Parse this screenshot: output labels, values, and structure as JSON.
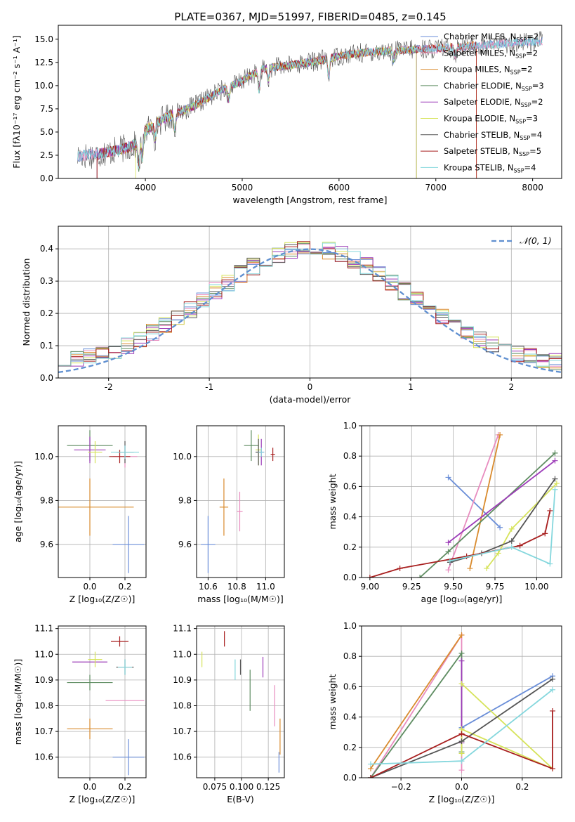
{
  "figure": {
    "title": "PLATE=0367, MJD=51997, FIBERID=0485, z=0.145"
  },
  "colors": {
    "Chabrier MILES": "#6a8ed8",
    "Salpeter MILES": "#e88cbf",
    "Kroupa MILES": "#d98b2e",
    "Chabrier ELODIE": "#5e8c61",
    "Salpeter ELODIE": "#9c3bb8",
    "Kroupa ELODIE": "#d6e35a",
    "Chabrier STELIB": "#555555",
    "Salpeter STELIB": "#a81f1f",
    "Kroupa STELIB": "#85d7dd",
    "gaussian": "#5f8fd0"
  },
  "chart_data": [
    {
      "id": "spectrum",
      "type": "line",
      "xlabel": "wavelength [Angstrom, rest frame]",
      "ylabel": "Flux [fλ10⁻¹⁷ erg cm⁻² s⁻¹ A⁻¹]",
      "xlim": [
        3100,
        8300
      ],
      "ylim": [
        0,
        16.5
      ],
      "xticks": [
        4000,
        5000,
        6000,
        7000,
        8000
      ],
      "yticks": [
        0.0,
        2.5,
        5.0,
        7.5,
        10.0,
        12.5,
        15.0
      ],
      "legend_position": "top-right",
      "legend": [
        {
          "name": "Chabrier MILES",
          "nssp": "2"
        },
        {
          "name": "Salpeter MILES",
          "nssp": "2"
        },
        {
          "name": "Kroupa MILES",
          "nssp": "2"
        },
        {
          "name": "Chabrier ELODIE",
          "nssp": "3"
        },
        {
          "name": "Salpeter ELODIE",
          "nssp": "2"
        },
        {
          "name": "Kroupa ELODIE",
          "nssp": "3"
        },
        {
          "name": "Chabrier STELIB",
          "nssp": "4"
        },
        {
          "name": "Salpeter STELIB",
          "nssp": "5"
        },
        {
          "name": "Kroupa STELIB",
          "nssp": "4"
        }
      ],
      "continuum": {
        "x": [
          3300,
          3500,
          3700,
          3900,
          4000,
          4200,
          4500,
          4800,
          5000,
          5200,
          5500,
          5800,
          6000,
          6300,
          6600,
          7000,
          7400,
          7800,
          8100
        ],
        "y": [
          2.4,
          2.6,
          3.0,
          3.6,
          5.2,
          6.5,
          7.8,
          9.6,
          10.5,
          11.8,
          12.2,
          12.7,
          13.2,
          13.6,
          13.8,
          14.0,
          14.3,
          14.6,
          14.8
        ]
      }
    },
    {
      "id": "residuals",
      "type": "step",
      "xlabel": "(data-model)/error",
      "ylabel": "Normed distribution",
      "xlim": [
        -2.5,
        2.5
      ],
      "ylim": [
        0,
        0.47
      ],
      "xticks": [
        -2,
        -1,
        0,
        1,
        2
      ],
      "yticks": [
        0.0,
        0.1,
        0.2,
        0.3,
        0.4
      ],
      "gaussian_label": "𝒩(0, 1)",
      "gaussian": {
        "mu": 0,
        "sigma": 1
      }
    },
    {
      "id": "age_vs_Z",
      "type": "errorbar",
      "xlabel": "Z [log₁₀(Z/Z☉)]",
      "ylabel": "age  [log₁₀(age/yr)]",
      "xlim": [
        -0.18,
        0.32
      ],
      "ylim": [
        9.45,
        10.14
      ],
      "xticks": [
        0.0,
        0.2
      ],
      "yticks": [
        9.6,
        9.8,
        10.0
      ],
      "points": [
        {
          "model": "Chabrier MILES",
          "x": 0.22,
          "y": 9.6,
          "xerr": 0.09,
          "yerr": 0.13
        },
        {
          "model": "Salpeter MILES",
          "x": 0.2,
          "y": 10.0,
          "xerr": 0.07,
          "yerr": 0.05
        },
        {
          "model": "Kroupa MILES",
          "x": 0.0,
          "y": 9.77,
          "xerr": 0.25,
          "yerr": 0.13
        },
        {
          "model": "Chabrier ELODIE",
          "x": 0.0,
          "y": 10.05,
          "xerr": 0.13,
          "yerr": 0.07
        },
        {
          "model": "Salpeter ELODIE",
          "x": 0.0,
          "y": 10.03,
          "xerr": 0.09,
          "yerr": 0.06
        },
        {
          "model": "Kroupa ELODIE",
          "x": 0.03,
          "y": 10.02,
          "xerr": 0.04,
          "yerr": 0.05
        },
        {
          "model": "Chabrier STELIB",
          "x": 0.2,
          "y": 10.02,
          "xerr": 0.05,
          "yerr": 0.05
        },
        {
          "model": "Salpeter STELIB",
          "x": 0.17,
          "y": 10.0,
          "xerr": 0.06,
          "yerr": 0.03
        },
        {
          "model": "Kroupa STELIB",
          "x": 0.2,
          "y": 10.02,
          "xerr": 0.08,
          "yerr": 0.03
        }
      ]
    },
    {
      "id": "age_vs_mass",
      "type": "errorbar",
      "xlabel": "mass [log₁₀(M/M☉)]",
      "ylabel": "",
      "xlim": [
        10.52,
        11.13
      ],
      "ylim": [
        9.45,
        10.14
      ],
      "xticks": [
        10.6,
        10.8,
        11.0
      ],
      "yticks": [
        9.6,
        9.8,
        10.0
      ],
      "points": [
        {
          "model": "Chabrier MILES",
          "x": 10.6,
          "y": 9.6,
          "xerr": 0.05,
          "yerr": 0.13
        },
        {
          "model": "Salpeter MILES",
          "x": 10.82,
          "y": 9.75,
          "xerr": 0.02,
          "yerr": 0.09
        },
        {
          "model": "Kroupa MILES",
          "x": 10.71,
          "y": 9.77,
          "xerr": 0.03,
          "yerr": 0.13
        },
        {
          "model": "Chabrier ELODIE",
          "x": 10.9,
          "y": 10.05,
          "xerr": 0.05,
          "yerr": 0.07
        },
        {
          "model": "Salpeter ELODIE",
          "x": 10.97,
          "y": 10.02,
          "xerr": 0.02,
          "yerr": 0.06
        },
        {
          "model": "Kroupa ELODIE",
          "x": 10.95,
          "y": 10.03,
          "xerr": 0.02,
          "yerr": 0.07
        },
        {
          "model": "Chabrier STELIB",
          "x": 10.95,
          "y": 10.02,
          "xerr": 0.02,
          "yerr": 0.06
        },
        {
          "model": "Salpeter STELIB",
          "x": 11.05,
          "y": 10.01,
          "xerr": 0.015,
          "yerr": 0.03
        },
        {
          "model": "Kroupa STELIB",
          "x": 10.97,
          "y": 10.02,
          "xerr": 0.02,
          "yerr": 0.02
        }
      ]
    },
    {
      "id": "massweight_vs_age",
      "type": "line",
      "xlabel": "age  [log₁₀(age/yr)]",
      "ylabel": "mass weight",
      "xlim": [
        8.95,
        10.15
      ],
      "ylim": [
        0,
        1.0
      ],
      "xticks": [
        9.0,
        9.25,
        9.5,
        9.75,
        10.0
      ],
      "xticklabels": [
        "9.00",
        "9.25",
        "9.50",
        "9.75",
        "10.00"
      ],
      "yticks": [
        0.0,
        0.2,
        0.4,
        0.6,
        0.8,
        1.0
      ],
      "series": [
        {
          "model": "Chabrier MILES",
          "x": [
            9.47,
            9.78
          ],
          "y": [
            0.66,
            0.33
          ]
        },
        {
          "model": "Salpeter MILES",
          "x": [
            9.47,
            9.77
          ],
          "y": [
            0.05,
            0.94
          ]
        },
        {
          "model": "Kroupa MILES",
          "x": [
            9.6,
            9.78
          ],
          "y": [
            0.06,
            0.94
          ]
        },
        {
          "model": "Chabrier ELODIE",
          "x": [
            9.3,
            9.47,
            10.11
          ],
          "y": [
            0.0,
            0.17,
            0.82
          ]
        },
        {
          "model": "Salpeter ELODIE",
          "x": [
            9.47,
            10.11
          ],
          "y": [
            0.23,
            0.77
          ]
        },
        {
          "model": "Kroupa ELODIE",
          "x": [
            9.7,
            9.77,
            9.85,
            10.12
          ],
          "y": [
            0.06,
            0.16,
            0.32,
            0.62
          ]
        },
        {
          "model": "Chabrier STELIB",
          "x": [
            9.48,
            9.67,
            9.85,
            10.11
          ],
          "y": [
            0.1,
            0.16,
            0.24,
            0.65
          ]
        },
        {
          "model": "Salpeter STELIB",
          "x": [
            9.0,
            9.18,
            9.58,
            9.9,
            10.05,
            10.08
          ],
          "y": [
            0.0,
            0.06,
            0.14,
            0.21,
            0.29,
            0.44
          ]
        },
        {
          "model": "Kroupa STELIB",
          "x": [
            9.48,
            9.85,
            10.08,
            10.11
          ],
          "y": [
            0.11,
            0.2,
            0.09,
            0.58
          ]
        }
      ]
    },
    {
      "id": "mass_vs_Z",
      "type": "errorbar",
      "xlabel": "Z [log₁₀(Z/Z☉)]",
      "ylabel": "mass [log₁₀(M/M☉)]",
      "xlim": [
        -0.18,
        0.32
      ],
      "ylim": [
        10.52,
        11.11
      ],
      "xticks": [
        0.0,
        0.2
      ],
      "yticks": [
        10.6,
        10.7,
        10.8,
        10.9,
        11.0,
        11.1
      ],
      "points": [
        {
          "model": "Chabrier MILES",
          "x": 0.22,
          "y": 10.6,
          "xerr": 0.09,
          "yerr": 0.07
        },
        {
          "model": "Salpeter MILES",
          "x": 0.2,
          "y": 10.82,
          "xerr": 0.11,
          "yerr": 0.0
        },
        {
          "model": "Kroupa MILES",
          "x": 0.0,
          "y": 10.71,
          "xerr": 0.13,
          "yerr": 0.04
        },
        {
          "model": "Chabrier ELODIE",
          "x": 0.0,
          "y": 10.89,
          "xerr": 0.13,
          "yerr": 0.03
        },
        {
          "model": "Salpeter ELODIE",
          "x": 0.0,
          "y": 10.97,
          "xerr": 0.1,
          "yerr": 0.0
        },
        {
          "model": "Kroupa ELODIE",
          "x": 0.03,
          "y": 10.98,
          "xerr": 0.04,
          "yerr": 0.03
        },
        {
          "model": "Chabrier STELIB",
          "x": 0.2,
          "y": 10.95,
          "xerr": 0.05,
          "yerr": 0.03
        },
        {
          "model": "Salpeter STELIB",
          "x": 0.17,
          "y": 11.05,
          "xerr": 0.05,
          "yerr": 0.02
        },
        {
          "model": "Kroupa STELIB",
          "x": 0.2,
          "y": 10.95,
          "xerr": 0.04,
          "yerr": 0.03
        }
      ]
    },
    {
      "id": "mass_vs_ebv",
      "type": "errorbar",
      "xlabel": "E(B-V)",
      "ylabel": "",
      "xlim": [
        0.058,
        0.14
      ],
      "ylim": [
        10.52,
        11.11
      ],
      "xticks": [
        0.075,
        0.1,
        0.125
      ],
      "xticklabels": [
        "0.075",
        "0.100",
        "0.125"
      ],
      "yticks": [
        10.6,
        10.7,
        10.8,
        10.9,
        11.0,
        11.1
      ],
      "points": [
        {
          "model": "Chabrier MILES",
          "x": 0.135,
          "y": 10.58,
          "xerr": 0.0,
          "yerr": 0.04
        },
        {
          "model": "Salpeter MILES",
          "x": 0.131,
          "y": 10.8,
          "xerr": 0.0,
          "yerr": 0.08
        },
        {
          "model": "Kroupa MILES",
          "x": 0.136,
          "y": 10.68,
          "xerr": 0.0,
          "yerr": 0.07
        },
        {
          "model": "Chabrier ELODIE",
          "x": 0.108,
          "y": 10.86,
          "xerr": 0.0,
          "yerr": 0.08
        },
        {
          "model": "Salpeter ELODIE",
          "x": 0.12,
          "y": 10.95,
          "xerr": 0.0,
          "yerr": 0.04
        },
        {
          "model": "Kroupa ELODIE",
          "x": 0.063,
          "y": 10.98,
          "xerr": 0.0,
          "yerr": 0.03
        },
        {
          "model": "Chabrier STELIB",
          "x": 0.099,
          "y": 10.95,
          "xerr": 0.0,
          "yerr": 0.03
        },
        {
          "model": "Salpeter STELIB",
          "x": 0.084,
          "y": 11.06,
          "xerr": 0.0,
          "yerr": 0.03
        },
        {
          "model": "Kroupa STELIB",
          "x": 0.094,
          "y": 10.94,
          "xerr": 0.0,
          "yerr": 0.04
        }
      ]
    },
    {
      "id": "massweight_vs_Z",
      "type": "line",
      "xlabel": "Z [log₁₀(Z/Z☉)]",
      "ylabel": "mass weight",
      "xlim": [
        -0.33,
        0.33
      ],
      "ylim": [
        0,
        1.0
      ],
      "xticks": [
        -0.2,
        0.0,
        0.2
      ],
      "xticklabels": [
        "−0.2",
        "0.0",
        "0.2"
      ],
      "yticks": [
        0.0,
        0.2,
        0.4,
        0.6,
        0.8,
        1.0
      ],
      "series": [
        {
          "model": "Chabrier MILES",
          "x": [
            0.0,
            0.3
          ],
          "y": [
            0.33,
            0.67
          ]
        },
        {
          "model": "Salpeter MILES",
          "x": [
            -0.3,
            0.0,
            0.0
          ],
          "y": [
            0.0,
            0.94,
            0.05
          ]
        },
        {
          "model": "Kroupa MILES",
          "x": [
            -0.3,
            0.0
          ],
          "y": [
            0.06,
            0.94
          ]
        },
        {
          "model": "Chabrier ELODIE",
          "x": [
            -0.3,
            0.0,
            0.0
          ],
          "y": [
            0.0,
            0.82,
            0.17
          ]
        },
        {
          "model": "Salpeter ELODIE",
          "x": [
            0.0,
            0.0
          ],
          "y": [
            0.77,
            0.23
          ]
        },
        {
          "model": "Kroupa ELODIE",
          "x": [
            0.0,
            0.3,
            0.0,
            0.0
          ],
          "y": [
            0.62,
            0.06,
            0.32,
            0.16
          ]
        },
        {
          "model": "Chabrier STELIB",
          "x": [
            -0.3,
            0.0,
            0.3
          ],
          "y": [
            0.0,
            0.24,
            0.65
          ]
        },
        {
          "model": "Salpeter STELIB",
          "x": [
            -0.3,
            0.0,
            0.3,
            0.3
          ],
          "y": [
            0.0,
            0.29,
            0.06,
            0.44
          ]
        },
        {
          "model": "Kroupa STELIB",
          "x": [
            -0.3,
            0.0,
            0.3
          ],
          "y": [
            0.09,
            0.11,
            0.58
          ]
        }
      ]
    }
  ]
}
